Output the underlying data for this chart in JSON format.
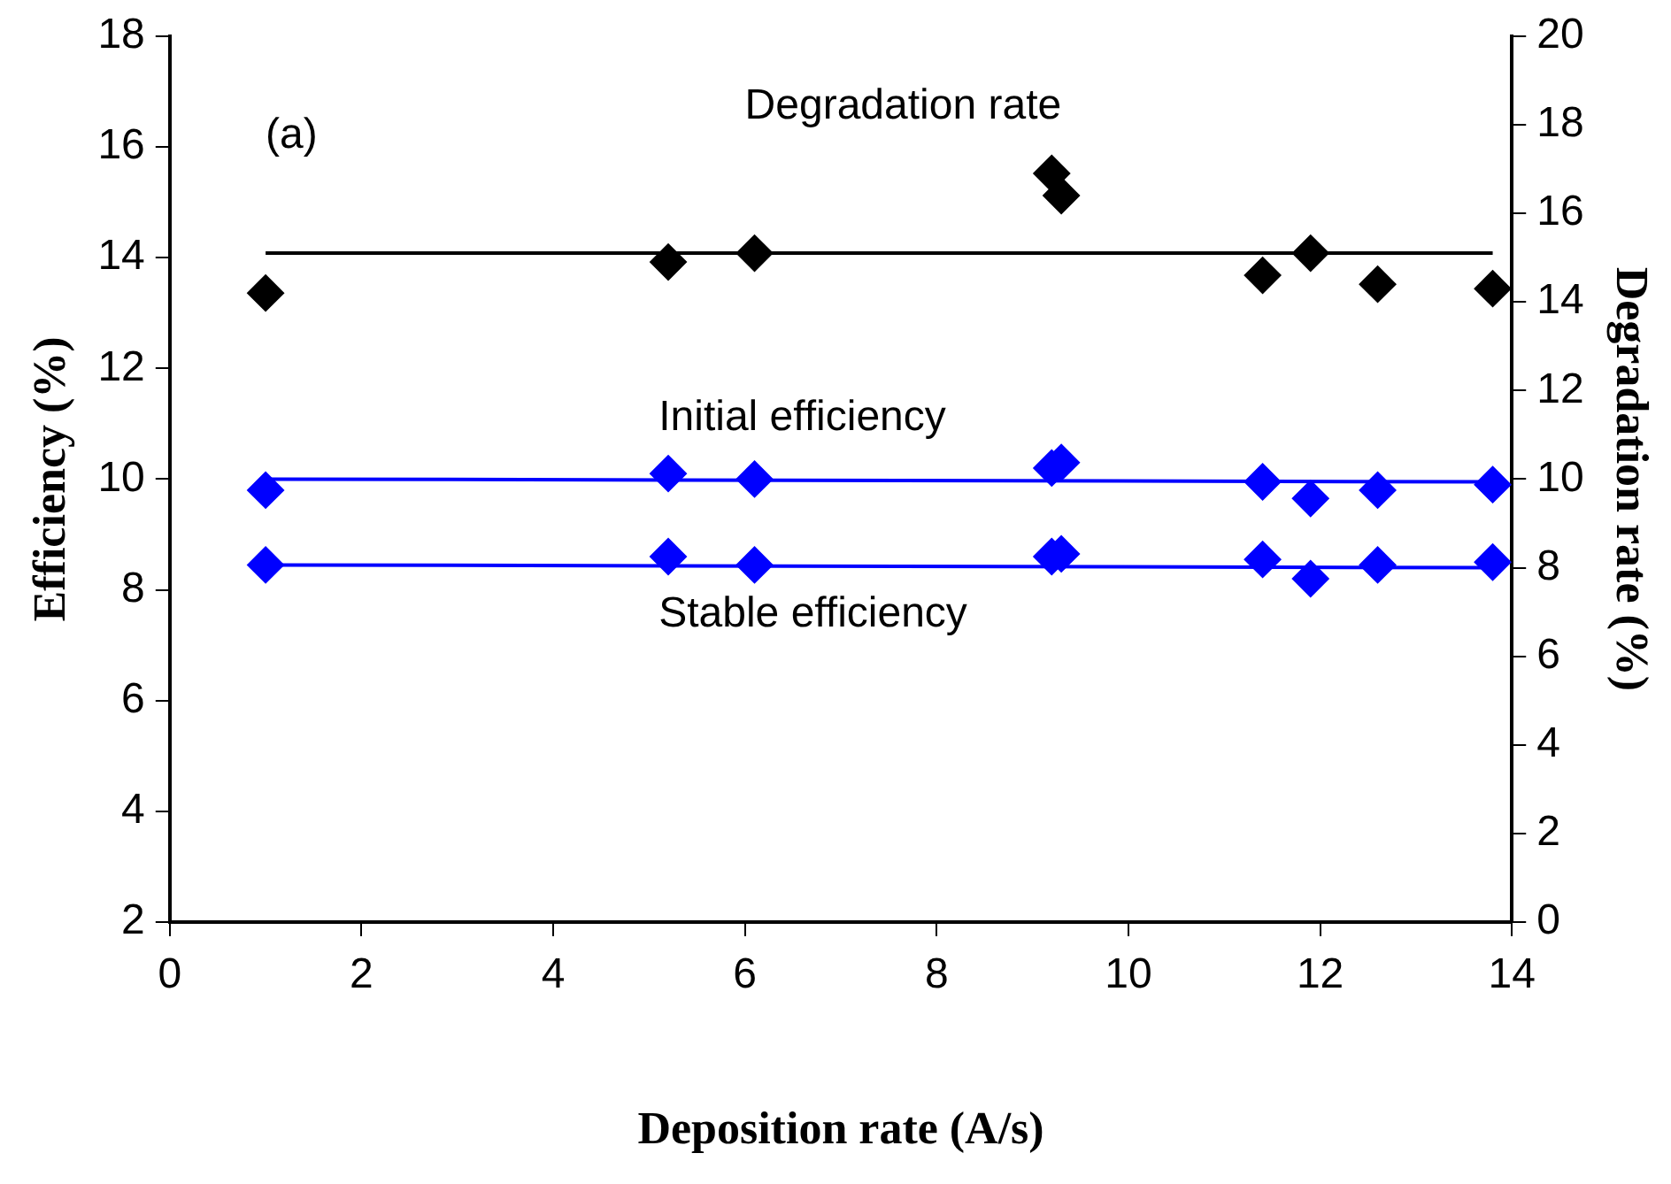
{
  "chart_data": {
    "type": "scatter",
    "xlabel": "Deposition rate (A/s)",
    "ylabel": "Efficiency (%)",
    "y2label": "Degradation rate (%)",
    "annotations": [
      "(a)"
    ],
    "series": [
      {
        "name": "Degradation rate",
        "color": "#000000",
        "marker": "diamond",
        "axis": "y2",
        "x": [
          1.0,
          5.2,
          6.1,
          9.2,
          9.3,
          11.4,
          11.9,
          12.6,
          13.8
        ],
        "values": [
          14.2,
          14.9,
          15.1,
          16.9,
          16.4,
          14.6,
          15.1,
          14.4,
          14.3
        ]
      },
      {
        "name": "Initial efficiency",
        "color": "#0000ff",
        "marker": "diamond",
        "x": [
          1.0,
          5.2,
          6.1,
          9.2,
          9.3,
          11.4,
          11.9,
          12.6,
          13.8
        ],
        "values": [
          9.8,
          10.1,
          10.0,
          10.2,
          10.3,
          9.95,
          9.65,
          9.8,
          9.9
        ]
      },
      {
        "name": "Stable efficiency",
        "color": "#0000ff",
        "marker": "diamond",
        "x": [
          1.0,
          5.2,
          6.1,
          9.2,
          9.3,
          11.4,
          11.9,
          12.6,
          13.8
        ],
        "values": [
          8.45,
          8.6,
          8.45,
          8.6,
          8.65,
          8.55,
          8.2,
          8.45,
          8.5
        ]
      },
      {
        "type": "line",
        "marker": "none",
        "color": "#000000",
        "axis": "y2",
        "x": [
          1.0,
          13.8
        ],
        "values": [
          15.1,
          15.1
        ]
      },
      {
        "type": "line",
        "marker": "none",
        "color": "#0000ff",
        "x": [
          1.0,
          13.8
        ],
        "values": [
          10.0,
          9.95
        ]
      },
      {
        "type": "line",
        "marker": "none",
        "color": "#0000ff",
        "x": [
          1.0,
          13.8
        ],
        "values": [
          8.45,
          8.4
        ]
      }
    ],
    "grid": false,
    "legend": false,
    "xlim": [
      0,
      14
    ],
    "xticks": [
      0,
      2,
      4,
      6,
      8,
      10,
      12,
      14
    ],
    "ylim": [
      2,
      18
    ],
    "yticks": [
      2,
      4,
      6,
      8,
      10,
      12,
      14,
      16,
      18
    ],
    "y2lim": [
      0,
      20
    ],
    "y2ticks": [
      0,
      2,
      4,
      6,
      8,
      10,
      12,
      14,
      16,
      18,
      20
    ]
  }
}
